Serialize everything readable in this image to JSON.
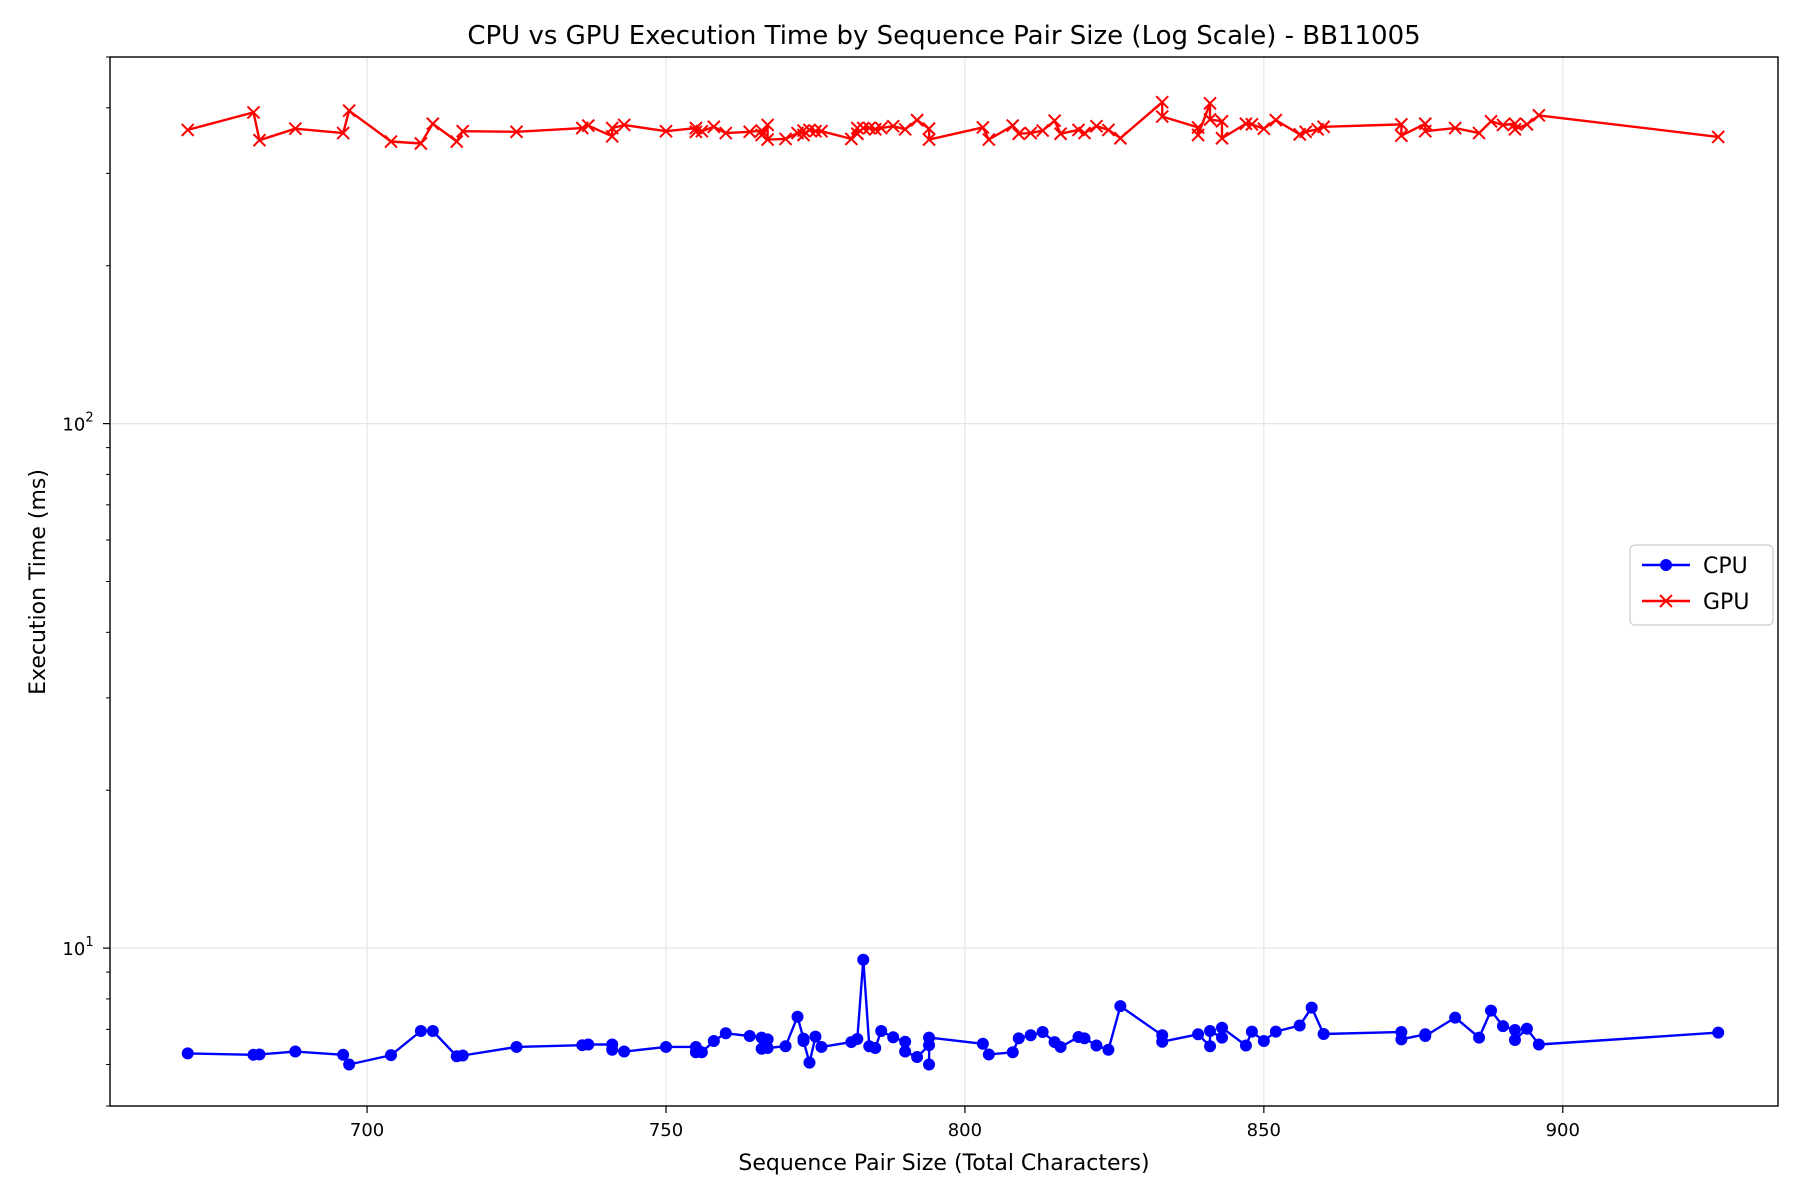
{
  "chart_data": {
    "type": "line",
    "title": "CPU vs GPU Execution Time by Sequence Pair Size (Log Scale) - BB11005",
    "xlabel": "Sequence Pair Size (Total Characters)",
    "ylabel": "Execution Time (ms)",
    "xlim": [
      657,
      936
    ],
    "ylim": [
      5.0,
      500
    ],
    "yscale": "log",
    "grid": true,
    "legend_position": "center-right",
    "x_ticks": [
      700,
      750,
      800,
      850,
      900
    ],
    "y_ticks": [
      {
        "value": 10,
        "base": "10",
        "exp": "1"
      },
      {
        "value": 100,
        "base": "10",
        "exp": "2"
      }
    ],
    "series": [
      {
        "name": "CPU",
        "color": "#0000ff",
        "marker": "circle",
        "points": [
          [
            670,
            6.3
          ],
          [
            681,
            6.26
          ],
          [
            682,
            6.27
          ],
          [
            688,
            6.35
          ],
          [
            696,
            6.26
          ],
          [
            697,
            6.0
          ],
          [
            704,
            6.25
          ],
          [
            709,
            6.95
          ],
          [
            711,
            6.95
          ],
          [
            715,
            6.22
          ],
          [
            716,
            6.24
          ],
          [
            725,
            6.48
          ],
          [
            736,
            6.53
          ],
          [
            737,
            6.55
          ],
          [
            741,
            6.55
          ],
          [
            741,
            6.4
          ],
          [
            743,
            6.35
          ],
          [
            750,
            6.48
          ],
          [
            755,
            6.48
          ],
          [
            755,
            6.33
          ],
          [
            756,
            6.33
          ],
          [
            758,
            6.65
          ],
          [
            760,
            6.88
          ],
          [
            764,
            6.8
          ],
          [
            766,
            6.75
          ],
          [
            766,
            6.43
          ],
          [
            767,
            6.7
          ],
          [
            767,
            6.45
          ],
          [
            770,
            6.5
          ],
          [
            772,
            7.4
          ],
          [
            773,
            6.72
          ],
          [
            773,
            6.65
          ],
          [
            774,
            6.05
          ],
          [
            775,
            6.78
          ],
          [
            776,
            6.48
          ],
          [
            781,
            6.62
          ],
          [
            782,
            6.71
          ],
          [
            783,
            9.5
          ],
          [
            784,
            6.5
          ],
          [
            785,
            6.45
          ],
          [
            786,
            6.95
          ],
          [
            788,
            6.76
          ],
          [
            790,
            6.63
          ],
          [
            790,
            6.35
          ],
          [
            792,
            6.2
          ],
          [
            794,
            6.53
          ],
          [
            794,
            6.0
          ],
          [
            794,
            6.75
          ],
          [
            803,
            6.57
          ],
          [
            804,
            6.27
          ],
          [
            808,
            6.33
          ],
          [
            809,
            6.73
          ],
          [
            811,
            6.82
          ],
          [
            813,
            6.92
          ],
          [
            815,
            6.62
          ],
          [
            816,
            6.48
          ],
          [
            819,
            6.77
          ],
          [
            820,
            6.73
          ],
          [
            822,
            6.52
          ],
          [
            824,
            6.4
          ],
          [
            826,
            7.75
          ],
          [
            833,
            6.82
          ],
          [
            833,
            6.63
          ],
          [
            839,
            6.85
          ],
          [
            841,
            6.5
          ],
          [
            841,
            6.95
          ],
          [
            843,
            6.75
          ],
          [
            843,
            7.05
          ],
          [
            847,
            6.52
          ],
          [
            848,
            6.93
          ],
          [
            850,
            6.65
          ],
          [
            852,
            6.93
          ],
          [
            856,
            7.12
          ],
          [
            858,
            7.7
          ],
          [
            860,
            6.86
          ],
          [
            873,
            6.92
          ],
          [
            873,
            6.7
          ],
          [
            877,
            6.85
          ],
          [
            877,
            6.8
          ],
          [
            882,
            7.37
          ],
          [
            886,
            6.75
          ],
          [
            888,
            7.6
          ],
          [
            890,
            7.1
          ],
          [
            892,
            6.98
          ],
          [
            892,
            6.68
          ],
          [
            894,
            7.02
          ],
          [
            896,
            6.55
          ],
          [
            926,
            6.9
          ]
        ]
      },
      {
        "name": "GPU",
        "color": "#ff0000",
        "marker": "x",
        "points": [
          [
            670,
            363
          ],
          [
            681,
            392
          ],
          [
            682,
            347
          ],
          [
            688,
            365
          ],
          [
            696,
            358
          ],
          [
            697,
            395
          ],
          [
            704,
            345
          ],
          [
            709,
            342
          ],
          [
            711,
            373
          ],
          [
            715,
            345
          ],
          [
            716,
            361
          ],
          [
            725,
            360
          ],
          [
            736,
            366
          ],
          [
            737,
            370
          ],
          [
            741,
            353
          ],
          [
            741,
            366
          ],
          [
            743,
            371
          ],
          [
            750,
            361
          ],
          [
            755,
            366
          ],
          [
            755,
            360
          ],
          [
            756,
            361
          ],
          [
            758,
            368
          ],
          [
            760,
            358
          ],
          [
            764,
            360
          ],
          [
            766,
            362
          ],
          [
            766,
            355
          ],
          [
            767,
            371
          ],
          [
            767,
            348
          ],
          [
            770,
            349
          ],
          [
            772,
            358
          ],
          [
            773,
            362
          ],
          [
            773,
            355
          ],
          [
            774,
            363
          ],
          [
            775,
            361
          ],
          [
            776,
            361
          ],
          [
            781,
            349
          ],
          [
            782,
            366
          ],
          [
            782,
            357
          ],
          [
            783,
            366
          ],
          [
            784,
            366
          ],
          [
            785,
            364
          ],
          [
            786,
            366
          ],
          [
            788,
            369
          ],
          [
            790,
            364
          ],
          [
            792,
            379
          ],
          [
            794,
            365
          ],
          [
            794,
            348
          ],
          [
            803,
            367
          ],
          [
            804,
            348
          ],
          [
            808,
            370
          ],
          [
            809,
            357
          ],
          [
            811,
            358
          ],
          [
            813,
            362
          ],
          [
            815,
            378
          ],
          [
            816,
            357
          ],
          [
            819,
            363
          ],
          [
            820,
            358
          ],
          [
            822,
            369
          ],
          [
            824,
            363
          ],
          [
            826,
            350
          ],
          [
            833,
            410
          ],
          [
            833,
            385
          ],
          [
            839,
            367
          ],
          [
            839,
            355
          ],
          [
            841,
            408
          ],
          [
            841,
            380
          ],
          [
            843,
            377
          ],
          [
            843,
            350
          ],
          [
            847,
            373
          ],
          [
            848,
            372
          ],
          [
            850,
            365
          ],
          [
            852,
            379
          ],
          [
            856,
            356
          ],
          [
            857,
            360
          ],
          [
            859,
            364
          ],
          [
            860,
            368
          ],
          [
            873,
            372
          ],
          [
            873,
            354
          ],
          [
            877,
            373
          ],
          [
            877,
            361
          ],
          [
            882,
            366
          ],
          [
            886,
            358
          ],
          [
            888,
            377
          ],
          [
            890,
            371
          ],
          [
            892,
            373
          ],
          [
            892,
            364
          ],
          [
            894,
            372
          ],
          [
            896,
            387
          ],
          [
            926,
            352
          ]
        ]
      }
    ]
  }
}
